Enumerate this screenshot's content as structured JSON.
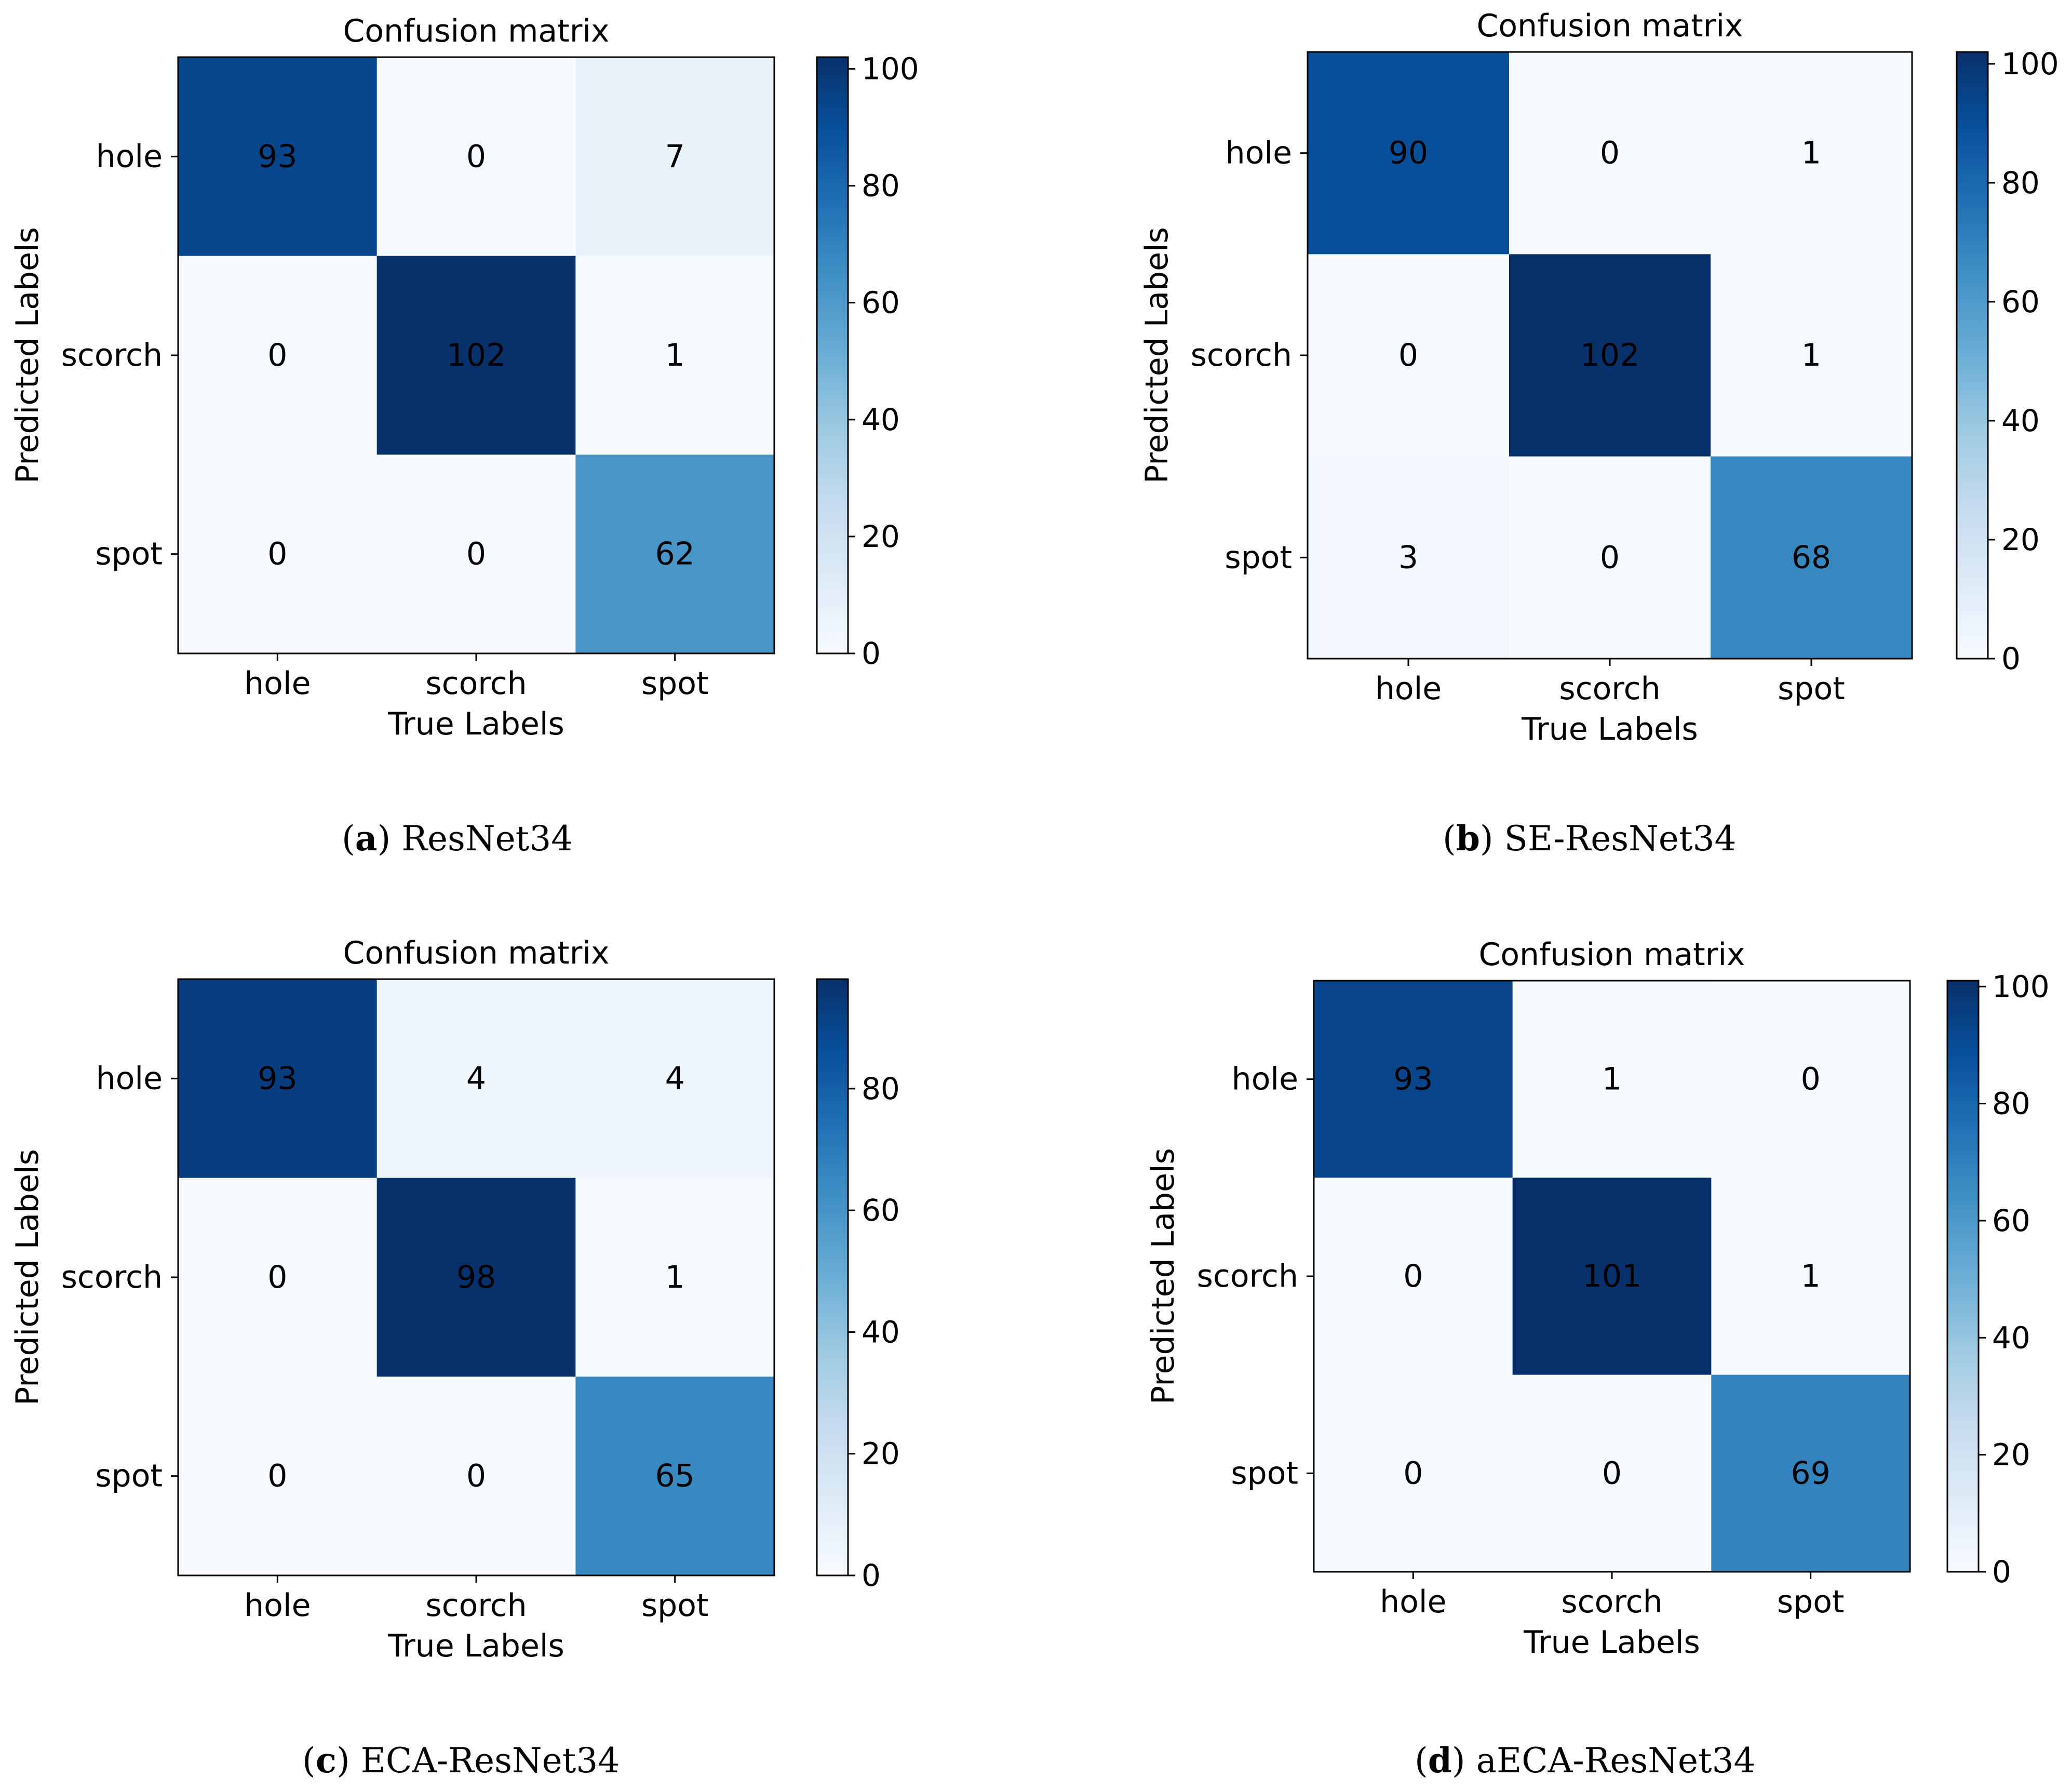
{
  "figure": {
    "panels": [
      {
        "caption": {
          "letter": "a",
          "model": "ResNet34"
        }
      },
      {
        "caption": {
          "letter": "b",
          "model": "SE-ResNet34"
        }
      },
      {
        "caption": {
          "letter": "c",
          "model": "ECA-ResNet34"
        }
      },
      {
        "caption": {
          "letter": "d",
          "model": "aECA-ResNet34"
        }
      }
    ]
  },
  "chart_data": [
    {
      "type": "heatmap",
      "title": "Confusion matrix",
      "xlabel": "True Labels",
      "ylabel": "Predicted Labels",
      "x_categories": [
        "hole",
        "scorch",
        "spot"
      ],
      "y_categories": [
        "hole",
        "scorch",
        "spot"
      ],
      "values": [
        [
          93,
          0,
          7
        ],
        [
          0,
          102,
          1
        ],
        [
          0,
          0,
          62
        ]
      ],
      "colorbar": {
        "vmin": 0,
        "vmax": 102,
        "ticks": [
          0,
          20,
          40,
          60,
          80,
          100
        ]
      },
      "colormap": "Blues"
    },
    {
      "type": "heatmap",
      "title": "Confusion matrix",
      "xlabel": "True Labels",
      "ylabel": "Predicted Labels",
      "x_categories": [
        "hole",
        "scorch",
        "spot"
      ],
      "y_categories": [
        "hole",
        "scorch",
        "spot"
      ],
      "values": [
        [
          90,
          0,
          1
        ],
        [
          0,
          102,
          1
        ],
        [
          3,
          0,
          68
        ]
      ],
      "colorbar": {
        "vmin": 0,
        "vmax": 102,
        "ticks": [
          0,
          20,
          40,
          60,
          80,
          100
        ]
      },
      "colormap": "Blues"
    },
    {
      "type": "heatmap",
      "title": "Confusion matrix",
      "xlabel": "True Labels",
      "ylabel": "Predicted Labels",
      "x_categories": [
        "hole",
        "scorch",
        "spot"
      ],
      "y_categories": [
        "hole",
        "scorch",
        "spot"
      ],
      "values": [
        [
          93,
          4,
          4
        ],
        [
          0,
          98,
          1
        ],
        [
          0,
          0,
          65
        ]
      ],
      "colorbar": {
        "vmin": 0,
        "vmax": 98,
        "ticks": [
          0,
          20,
          40,
          60,
          80
        ]
      },
      "colormap": "Blues"
    },
    {
      "type": "heatmap",
      "title": "Confusion matrix",
      "xlabel": "True Labels",
      "ylabel": "Predicted Labels",
      "x_categories": [
        "hole",
        "scorch",
        "spot"
      ],
      "y_categories": [
        "hole",
        "scorch",
        "spot"
      ],
      "values": [
        [
          93,
          1,
          0
        ],
        [
          0,
          101,
          1
        ],
        [
          0,
          0,
          69
        ]
      ],
      "colorbar": {
        "vmin": 0,
        "vmax": 101,
        "ticks": [
          0,
          20,
          40,
          60,
          80,
          100
        ]
      },
      "colormap": "Blues"
    }
  ]
}
